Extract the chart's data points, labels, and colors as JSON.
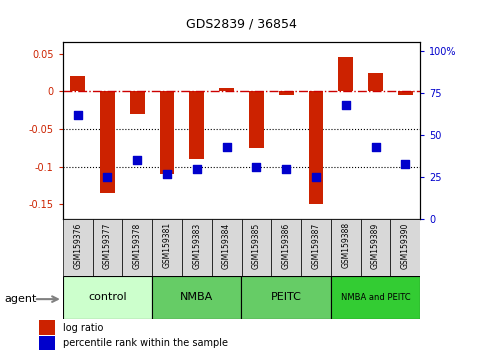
{
  "title": "GDS2839 / 36854",
  "samples": [
    "GSM159376",
    "GSM159377",
    "GSM159378",
    "GSM159381",
    "GSM159383",
    "GSM159384",
    "GSM159385",
    "GSM159386",
    "GSM159387",
    "GSM159388",
    "GSM159389",
    "GSM159390"
  ],
  "log_ratio": [
    0.02,
    -0.135,
    -0.03,
    -0.11,
    -0.09,
    0.004,
    -0.075,
    -0.005,
    -0.15,
    0.046,
    0.025,
    -0.005
  ],
  "percentile_rank": [
    62,
    25,
    35,
    27,
    30,
    43,
    31,
    30,
    25,
    68,
    43,
    33
  ],
  "groups": [
    {
      "label": "control",
      "start": 0,
      "end": 3,
      "color": "#ccffcc"
    },
    {
      "label": "NMBA",
      "start": 3,
      "end": 6,
      "color": "#66cc66"
    },
    {
      "label": "PEITC",
      "start": 6,
      "end": 9,
      "color": "#66cc66"
    },
    {
      "label": "NMBA and PEITC",
      "start": 9,
      "end": 12,
      "color": "#33cc33"
    }
  ],
  "ylim_left": [
    -0.17,
    0.065
  ],
  "yticks_left": [
    -0.15,
    -0.1,
    -0.05,
    0,
    0.05
  ],
  "ylim_right": [
    0,
    105
  ],
  "yticks_right": [
    0,
    25,
    50,
    75,
    100
  ],
  "bar_color": "#cc2200",
  "dot_color": "#0000cc",
  "zero_line_color": "#cc0000",
  "grid_color": "#000000",
  "bar_width": 0.5,
  "dot_size": 50,
  "agent_label": "agent",
  "legend_bar_label": "log ratio",
  "legend_dot_label": "percentile rank within the sample"
}
